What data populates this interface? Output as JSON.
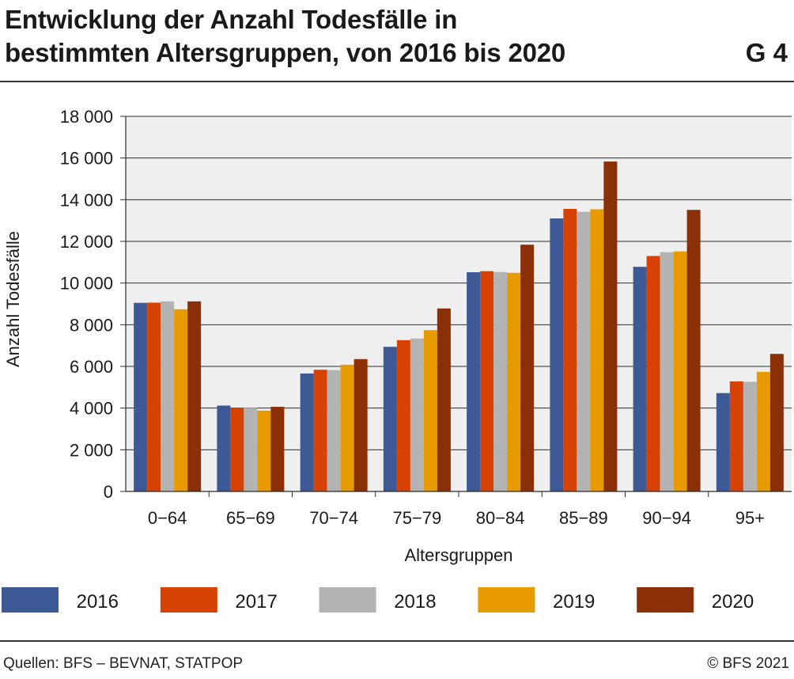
{
  "header": {
    "title_line1": "Entwicklung der Anzahl Todesfälle in",
    "title_line2": "bestimmten Altersgruppen, von 2016 bis 2020",
    "figure_id": "G 4"
  },
  "footer": {
    "source": "Quellen: BFS – BEVNAT, STATPOP",
    "copyright": "© BFS 2021"
  },
  "chart_data": {
    "type": "bar",
    "xlabel": "Altersgruppen",
    "ylabel": "Anzahl Todesfälle",
    "ylim": [
      0,
      18000
    ],
    "yticks": [
      0,
      2000,
      4000,
      6000,
      8000,
      10000,
      12000,
      14000,
      16000,
      18000
    ],
    "ytick_labels": [
      "0",
      "2 000",
      "4 000",
      "6 000",
      "8 000",
      "10 000",
      "12 000",
      "14 000",
      "16 000",
      "18 000"
    ],
    "grid": true,
    "legend_position": "bottom",
    "categories": [
      "0−64",
      "65−69",
      "70−74",
      "75−79",
      "80−84",
      "85−89",
      "90−94",
      "95+"
    ],
    "series": [
      {
        "name": "2016",
        "color": "#3d5a96",
        "values": [
          9050,
          4120,
          5660,
          6940,
          10520,
          13100,
          10780,
          4720
        ]
      },
      {
        "name": "2017",
        "color": "#d64204",
        "values": [
          9060,
          4020,
          5840,
          7260,
          10570,
          13560,
          11300,
          5280
        ]
      },
      {
        "name": "2018",
        "color": "#b3b3b3",
        "values": [
          9120,
          4010,
          5820,
          7340,
          10530,
          13420,
          11480,
          5260
        ]
      },
      {
        "name": "2019",
        "color": "#e89b00",
        "values": [
          8740,
          3880,
          6080,
          7740,
          10490,
          13540,
          11520,
          5740
        ]
      },
      {
        "name": "2020",
        "color": "#8a2f06",
        "values": [
          9120,
          4060,
          6350,
          8780,
          11840,
          15830,
          13510,
          6600
        ]
      }
    ]
  }
}
